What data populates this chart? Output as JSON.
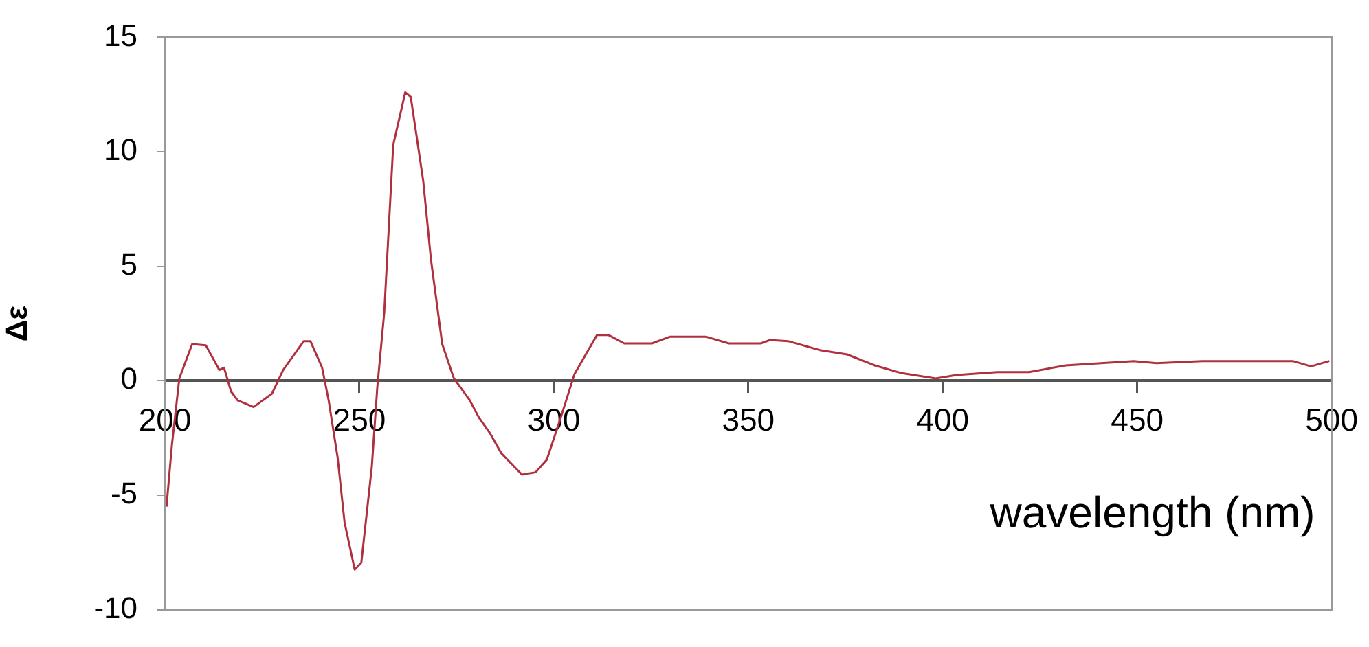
{
  "chart_data": {
    "type": "line",
    "xlabel": "wavelength (nm)",
    "ylabel": "Δε",
    "xlim": [
      200,
      500
    ],
    "xticks": [
      200,
      250,
      300,
      350,
      400,
      450,
      500
    ],
    "ylim": [
      -10,
      15
    ],
    "yticks": [
      -10,
      -5,
      0,
      5,
      10,
      15
    ],
    "grid": false,
    "legend": false,
    "marker": "none",
    "line_style": "solid",
    "series": [
      {
        "color": "#b03040",
        "x": [
          200.4,
          201.8,
          203.7,
          207,
          210.5,
          214,
          215.2,
          217,
          218.7,
          222.8,
          227.5,
          230.4,
          235.7,
          237.4,
          240.4,
          242.1,
          244.4,
          246.2,
          248.8,
          250.5,
          253.2,
          254.6,
          256.4,
          258.7,
          261.8,
          263.2,
          266.4,
          268.4,
          271.3,
          274.3,
          278.4,
          280.7,
          283.6,
          286.5,
          291.8,
          295.3,
          298.2,
          301.8,
          305.3,
          311.1,
          314,
          318.1,
          325.2,
          329.8,
          339.2,
          345,
          353.2,
          355.6,
          360.2,
          368.4,
          375.4,
          382.5,
          389.5,
          398.2,
          403.5,
          414,
          422.2,
          431.6,
          449.1,
          455,
          466.7,
          478.4,
          490,
          494.7,
          499.4
        ],
        "values": [
          -5.5,
          -2.8,
          0.1,
          1.6,
          1.55,
          0.47,
          0.57,
          -0.47,
          -0.86,
          -1.15,
          -0.57,
          0.47,
          1.73,
          1.73,
          0.58,
          -0.86,
          -3.35,
          -6.2,
          -8.25,
          -7.95,
          -3.75,
          -0.3,
          3.0,
          10.3,
          12.6,
          12.4,
          8.75,
          5.3,
          1.6,
          0.1,
          -0.86,
          -1.6,
          -2.3,
          -3.17,
          -4.1,
          -4.0,
          -3.45,
          -1.6,
          0.29,
          2.0,
          2.0,
          1.63,
          1.63,
          1.92,
          1.92,
          1.63,
          1.63,
          1.78,
          1.73,
          1.34,
          1.15,
          0.67,
          0.33,
          0.1,
          0.25,
          0.38,
          0.38,
          0.67,
          0.86,
          0.77,
          0.86,
          0.86,
          0.86,
          0.63,
          0.86
        ]
      }
    ]
  }
}
